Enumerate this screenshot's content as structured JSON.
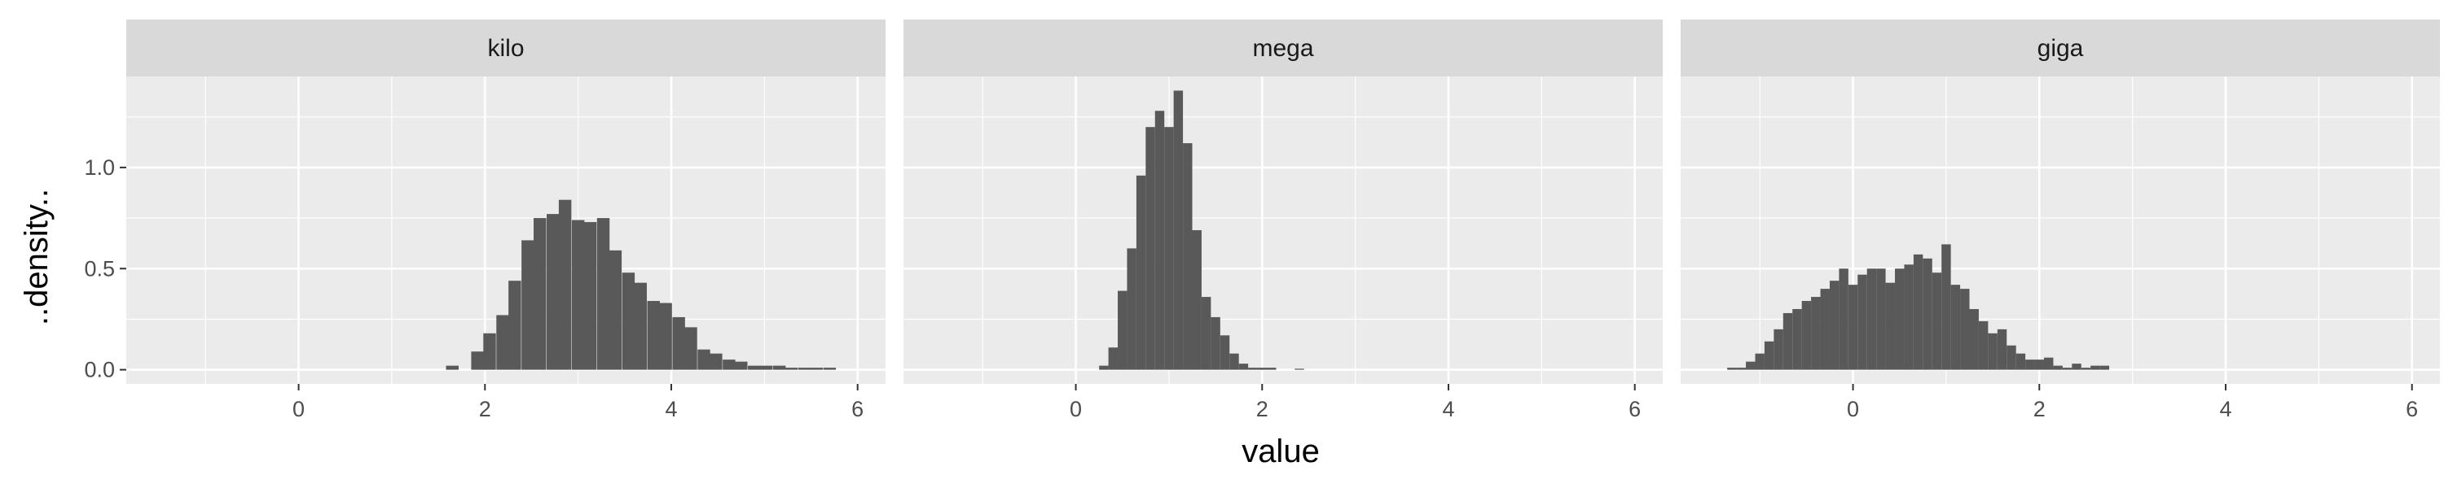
{
  "chart_data": {
    "type": "histogram",
    "xlabel": "value",
    "ylabel": "..density..",
    "xlim": [
      -1.85,
      6.3
    ],
    "ylim": [
      -0.07,
      1.45
    ],
    "x_ticks": [
      0,
      2,
      4,
      6
    ],
    "x_tick_labels": [
      "0",
      "2",
      "4",
      "6"
    ],
    "y_ticks": [
      0.0,
      0.5,
      1.0
    ],
    "y_tick_labels": [
      "0.0",
      "0.5",
      "1.0"
    ],
    "grid": true,
    "bar_color": "#595959",
    "panel_background": "#ebebeb",
    "strip_background": "#d9d9d9",
    "panels": [
      {
        "name": "kilo",
        "bin_width": 0.135,
        "bins": [
          {
            "x": 1.65,
            "density": 0.02
          },
          {
            "x": 1.78,
            "density": 0.0
          },
          {
            "x": 1.92,
            "density": 0.09
          },
          {
            "x": 2.05,
            "density": 0.18
          },
          {
            "x": 2.19,
            "density": 0.27
          },
          {
            "x": 2.32,
            "density": 0.44
          },
          {
            "x": 2.46,
            "density": 0.64
          },
          {
            "x": 2.59,
            "density": 0.75
          },
          {
            "x": 2.73,
            "density": 0.77
          },
          {
            "x": 2.86,
            "density": 0.84
          },
          {
            "x": 3.0,
            "density": 0.74
          },
          {
            "x": 3.13,
            "density": 0.73
          },
          {
            "x": 3.27,
            "density": 0.75
          },
          {
            "x": 3.4,
            "density": 0.59
          },
          {
            "x": 3.54,
            "density": 0.48
          },
          {
            "x": 3.67,
            "density": 0.43
          },
          {
            "x": 3.81,
            "density": 0.34
          },
          {
            "x": 3.94,
            "density": 0.33
          },
          {
            "x": 4.08,
            "density": 0.26
          },
          {
            "x": 4.21,
            "density": 0.21
          },
          {
            "x": 4.35,
            "density": 0.1
          },
          {
            "x": 4.48,
            "density": 0.08
          },
          {
            "x": 4.62,
            "density": 0.05
          },
          {
            "x": 4.75,
            "density": 0.04
          },
          {
            "x": 4.89,
            "density": 0.02
          },
          {
            "x": 5.02,
            "density": 0.02
          },
          {
            "x": 5.16,
            "density": 0.02
          },
          {
            "x": 5.29,
            "density": 0.01
          },
          {
            "x": 5.43,
            "density": 0.01
          },
          {
            "x": 5.56,
            "density": 0.01
          },
          {
            "x": 5.7,
            "density": 0.01
          }
        ]
      },
      {
        "name": "mega",
        "bin_width": 0.1,
        "bins": [
          {
            "x": 0.3,
            "density": 0.02
          },
          {
            "x": 0.4,
            "density": 0.11
          },
          {
            "x": 0.5,
            "density": 0.39
          },
          {
            "x": 0.6,
            "density": 0.6
          },
          {
            "x": 0.7,
            "density": 0.96
          },
          {
            "x": 0.8,
            "density": 1.2
          },
          {
            "x": 0.9,
            "density": 1.28
          },
          {
            "x": 1.0,
            "density": 1.2
          },
          {
            "x": 1.1,
            "density": 1.38
          },
          {
            "x": 1.2,
            "density": 1.12
          },
          {
            "x": 1.3,
            "density": 0.69
          },
          {
            "x": 1.4,
            "density": 0.36
          },
          {
            "x": 1.5,
            "density": 0.26
          },
          {
            "x": 1.6,
            "density": 0.17
          },
          {
            "x": 1.7,
            "density": 0.08
          },
          {
            "x": 1.8,
            "density": 0.03
          },
          {
            "x": 1.9,
            "density": 0.01
          },
          {
            "x": 2.0,
            "density": 0.01
          },
          {
            "x": 2.1,
            "density": 0.01
          },
          {
            "x": 2.4,
            "density": 0.005
          }
        ]
      },
      {
        "name": "giga",
        "bin_width": 0.1,
        "bins": [
          {
            "x": -1.3,
            "density": 0.01
          },
          {
            "x": -1.2,
            "density": 0.01
          },
          {
            "x": -1.1,
            "density": 0.04
          },
          {
            "x": -1.0,
            "density": 0.08
          },
          {
            "x": -0.9,
            "density": 0.14
          },
          {
            "x": -0.8,
            "density": 0.2
          },
          {
            "x": -0.7,
            "density": 0.28
          },
          {
            "x": -0.6,
            "density": 0.3
          },
          {
            "x": -0.5,
            "density": 0.34
          },
          {
            "x": -0.4,
            "density": 0.36
          },
          {
            "x": -0.3,
            "density": 0.4
          },
          {
            "x": -0.2,
            "density": 0.44
          },
          {
            "x": -0.1,
            "density": 0.5
          },
          {
            "x": 0.0,
            "density": 0.42
          },
          {
            "x": 0.1,
            "density": 0.47
          },
          {
            "x": 0.2,
            "density": 0.5
          },
          {
            "x": 0.3,
            "density": 0.5
          },
          {
            "x": 0.4,
            "density": 0.43
          },
          {
            "x": 0.5,
            "density": 0.5
          },
          {
            "x": 0.6,
            "density": 0.52
          },
          {
            "x": 0.7,
            "density": 0.57
          },
          {
            "x": 0.8,
            "density": 0.55
          },
          {
            "x": 0.9,
            "density": 0.48
          },
          {
            "x": 1.0,
            "density": 0.62
          },
          {
            "x": 1.1,
            "density": 0.42
          },
          {
            "x": 1.2,
            "density": 0.4
          },
          {
            "x": 1.3,
            "density": 0.3
          },
          {
            "x": 1.4,
            "density": 0.24
          },
          {
            "x": 1.5,
            "density": 0.18
          },
          {
            "x": 1.6,
            "density": 0.2
          },
          {
            "x": 1.7,
            "density": 0.12
          },
          {
            "x": 1.8,
            "density": 0.08
          },
          {
            "x": 1.9,
            "density": 0.05
          },
          {
            "x": 2.0,
            "density": 0.05
          },
          {
            "x": 2.1,
            "density": 0.06
          },
          {
            "x": 2.2,
            "density": 0.02
          },
          {
            "x": 2.3,
            "density": 0.01
          },
          {
            "x": 2.4,
            "density": 0.03
          },
          {
            "x": 2.5,
            "density": 0.01
          },
          {
            "x": 2.6,
            "density": 0.02
          },
          {
            "x": 2.7,
            "density": 0.02
          }
        ]
      }
    ]
  }
}
